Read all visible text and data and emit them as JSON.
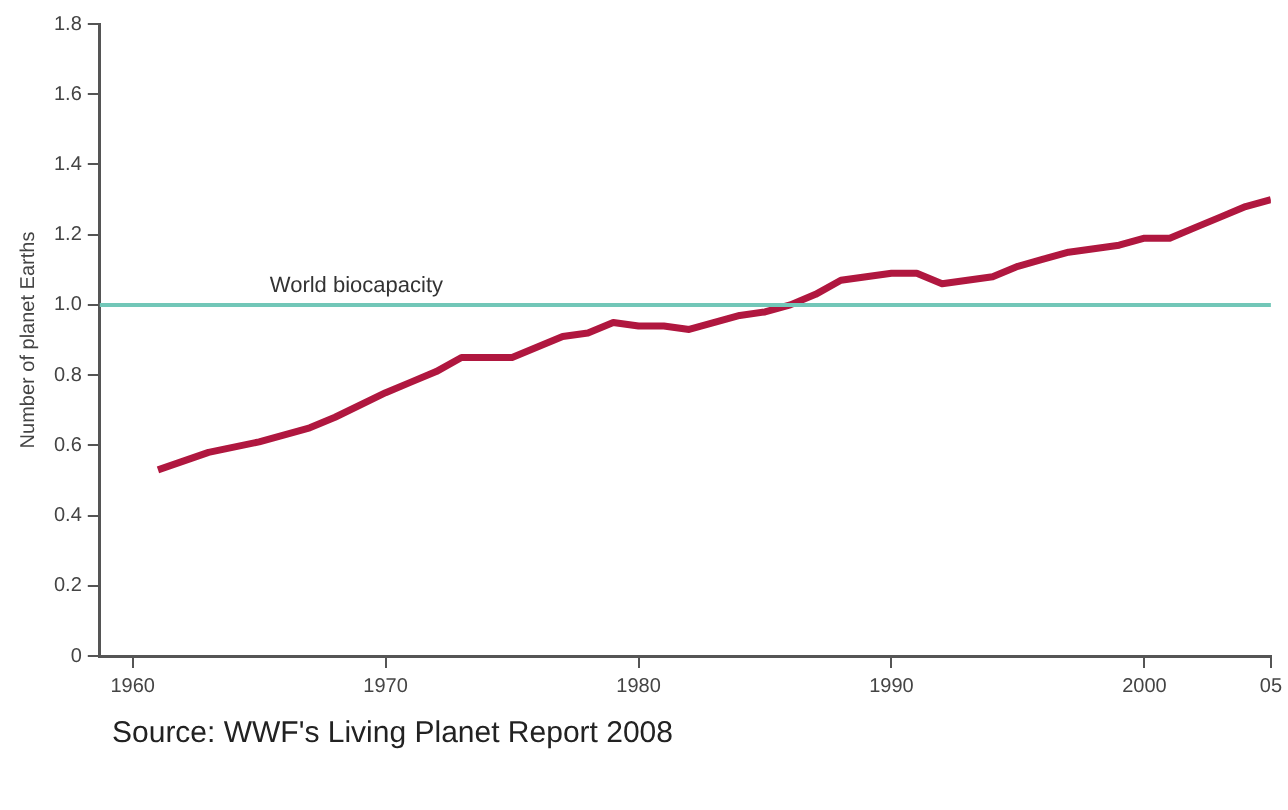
{
  "chart_data": {
    "type": "line",
    "ylabel": "Number of planet Earths",
    "x": [
      1961,
      1963,
      1965,
      1967,
      1968,
      1970,
      1971,
      1972,
      1973,
      1974,
      1975,
      1976,
      1977,
      1978,
      1979,
      1980,
      1981,
      1982,
      1983,
      1984,
      1985,
      1986,
      1987,
      1988,
      1989,
      1990,
      1991,
      1992,
      1993,
      1994,
      1995,
      1996,
      1997,
      1998,
      1999,
      2000,
      2001,
      2002,
      2003,
      2004,
      2005
    ],
    "series": [
      {
        "color": "#b0173f",
        "values": [
          0.53,
          0.58,
          0.61,
          0.65,
          0.68,
          0.75,
          0.78,
          0.81,
          0.85,
          0.85,
          0.85,
          0.88,
          0.91,
          0.92,
          0.95,
          0.94,
          0.94,
          0.93,
          0.95,
          0.97,
          0.98,
          1.0,
          1.03,
          1.07,
          1.08,
          1.09,
          1.09,
          1.06,
          1.07,
          1.08,
          1.11,
          1.13,
          1.15,
          1.16,
          1.17,
          1.19,
          1.19,
          1.22,
          1.25,
          1.28,
          1.3
        ]
      }
    ],
    "xlim": [
      1958.7,
      2005
    ],
    "xticks": [
      1960,
      1970,
      1980,
      1990,
      2000,
      {
        "value": 2005,
        "label": "05"
      }
    ],
    "ylim": [
      0,
      1.8
    ],
    "yticks": [
      0,
      0.2,
      0.4,
      0.6,
      0.8,
      {
        "value": 1,
        "label": "1.0"
      },
      1.2,
      1.4,
      1.6,
      1.8
    ],
    "ref_lines": [
      {
        "axis": "y",
        "value": 1,
        "label": "World biocapacity",
        "color": "#72c7b8"
      }
    ],
    "annotations": [
      "Source: WWF's Living Planet Report 2008"
    ],
    "grid": false,
    "legend": false,
    "marker": "none",
    "line_style": "solid"
  }
}
